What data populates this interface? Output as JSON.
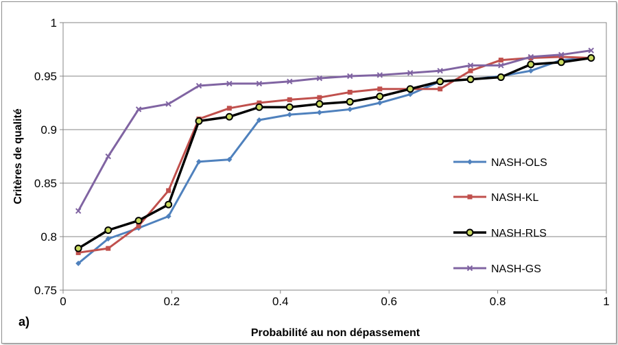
{
  "chart_data": {
    "type": "line",
    "panel_label": "a)",
    "title": "",
    "xlabel": "Probabilité au non dépassement",
    "ylabel": "Critères de qualité",
    "xlim": [
      0,
      1
    ],
    "ylim": [
      0.75,
      1
    ],
    "x_ticks": [
      "0",
      "0.2",
      "0.4",
      "0.6",
      "0.8",
      "1"
    ],
    "y_ticks": [
      "0.75",
      "0.8",
      "0.85",
      "0.9",
      "0.95",
      "1"
    ],
    "grid": "horizontal",
    "legend_position": "right",
    "x": [
      0.028,
      0.083,
      0.139,
      0.194,
      0.25,
      0.306,
      0.361,
      0.417,
      0.472,
      0.528,
      0.583,
      0.639,
      0.694,
      0.75,
      0.806,
      0.861,
      0.917,
      0.972
    ],
    "series": [
      {
        "name": "NASH-OLS",
        "color": "#4f81bd",
        "marker": "diamond",
        "values": [
          0.775,
          0.798,
          0.808,
          0.819,
          0.87,
          0.872,
          0.909,
          0.914,
          0.916,
          0.919,
          0.925,
          0.933,
          0.945,
          0.947,
          0.95,
          0.955,
          0.965,
          0.967
        ]
      },
      {
        "name": "NASH-KL",
        "color": "#c0504d",
        "marker": "square",
        "values": [
          0.785,
          0.789,
          0.81,
          0.843,
          0.91,
          0.92,
          0.925,
          0.928,
          0.93,
          0.935,
          0.938,
          0.938,
          0.938,
          0.955,
          0.965,
          0.967,
          0.968,
          0.967
        ]
      },
      {
        "name": "NASH-RLS",
        "color": "#000000",
        "marker": "circle",
        "values": [
          0.789,
          0.806,
          0.815,
          0.83,
          0.908,
          0.912,
          0.921,
          0.921,
          0.924,
          0.926,
          0.931,
          0.938,
          0.945,
          0.947,
          0.949,
          0.961,
          0.963,
          0.967
        ]
      },
      {
        "name": "NASH-GS",
        "color": "#8064a2",
        "marker": "x",
        "values": [
          0.824,
          0.875,
          0.919,
          0.924,
          0.941,
          0.943,
          0.943,
          0.945,
          0.948,
          0.95,
          0.951,
          0.953,
          0.955,
          0.96,
          0.96,
          0.968,
          0.97,
          0.974
        ]
      }
    ]
  }
}
